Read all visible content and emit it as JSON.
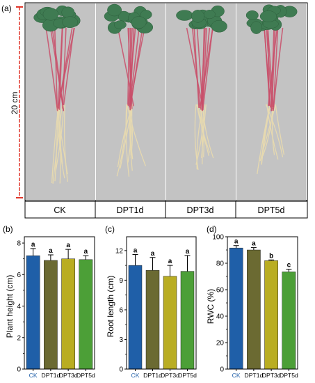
{
  "panel_a": {
    "label": "(a)",
    "scale_text": "20 cm",
    "treatments": [
      "CK",
      "DPT1d",
      "DPT3d",
      "DPT5d"
    ]
  },
  "colors": {
    "background": "#ffffff",
    "photo_background": "#c3c3c3",
    "leaf": "#3f7b52",
    "stem": "#c94f6a",
    "root": "#e6d9b0",
    "scale_bar": "#e0362b",
    "bars": [
      "#1f5fa8",
      "#6b6a32",
      "#b9ad22",
      "#4c9f37"
    ]
  },
  "chart_data": [
    {
      "panel": "(b)",
      "type": "bar",
      "categories": [
        "CK",
        "DPT1d",
        "DPT3d",
        "DPT5d"
      ],
      "values": [
        7.2,
        6.9,
        7.0,
        6.95
      ],
      "errors": [
        0.45,
        0.35,
        0.6,
        0.25
      ],
      "significance": [
        "a",
        "a",
        "a",
        "a"
      ],
      "ylabel": "Plant height (cm)",
      "ylim": [
        0,
        8.4
      ],
      "yticks": [
        0,
        2,
        4,
        6,
        8
      ],
      "legend": "none"
    },
    {
      "panel": "(c)",
      "type": "bar",
      "categories": [
        "CK",
        "DPT1d",
        "DPT3d",
        "DPT5d"
      ],
      "values": [
        10.5,
        10.0,
        9.4,
        9.9
      ],
      "errors": [
        1.1,
        1.3,
        1.1,
        1.6
      ],
      "significance": [
        "a",
        "a",
        "a",
        "a"
      ],
      "ylabel": "Root length (cm)",
      "ylim": [
        0,
        13.4
      ],
      "yticks": [
        0,
        3,
        6,
        9,
        12
      ],
      "legend": "none"
    },
    {
      "panel": "(d)",
      "type": "bar",
      "categories": [
        "CK",
        "DPT1d",
        "DPT3d",
        "DPT5d"
      ],
      "values": [
        91.5,
        90.0,
        82.0,
        73.5
      ],
      "errors": [
        1.8,
        1.8,
        0.5,
        2.0
      ],
      "significance": [
        "a",
        "a",
        "b",
        "c"
      ],
      "ylabel": "RWC (%)",
      "ylim": [
        0,
        100
      ],
      "yticks": [
        0,
        20,
        40,
        60,
        80,
        100
      ],
      "legend": "none"
    }
  ]
}
